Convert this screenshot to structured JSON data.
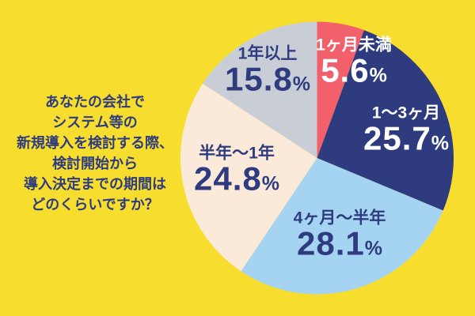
{
  "canvas": {
    "background_color": "#F7DE2E"
  },
  "question": {
    "color": "#2E3B7E",
    "lines": [
      "あなたの会社で",
      "システム等の",
      "新規導入を検討する際、",
      "検討開始から",
      "導入決定までの期間は",
      "どのくらいですか？"
    ]
  },
  "chart_data": {
    "type": "pie",
    "title": "あなたの会社でシステム等の新規導入を検討する際、検討開始から導入決定までの期間はどのくらいですか？",
    "categories": [
      "1ヶ月未満",
      "1〜3ヶ月",
      "4ヶ月〜半年",
      "半年〜1年",
      "1年以上"
    ],
    "values": [
      5.6,
      25.7,
      28.1,
      24.8,
      15.8
    ],
    "unit": "%",
    "colors": [
      "#F2606C",
      "#2E3B7E",
      "#A5D3F2",
      "#FBEADA",
      "#C9CDD6"
    ],
    "label_colors": [
      "#FFFFFF",
      "#FFFFFF",
      "#2E3B7E",
      "#2E3B7E",
      "#2E3B7E"
    ],
    "start_angle": "12-oclock",
    "direction": "clockwise",
    "legend_position": "none",
    "labels_inside_slices": true
  }
}
